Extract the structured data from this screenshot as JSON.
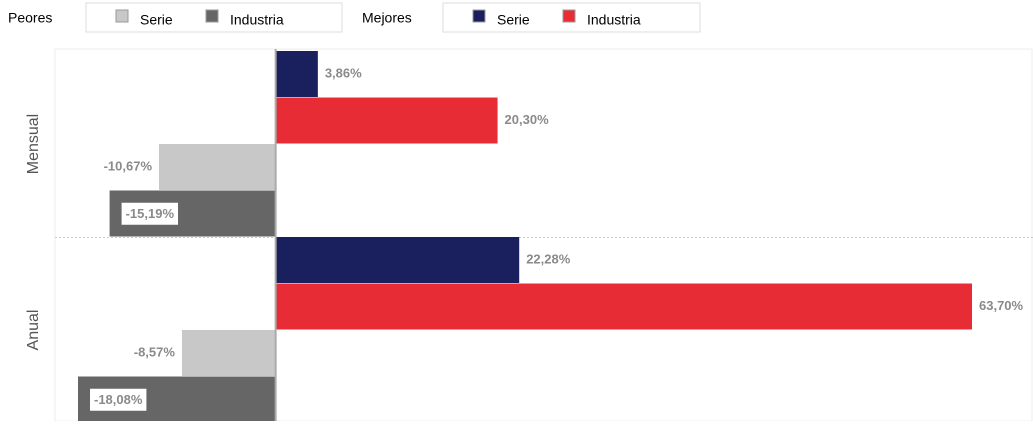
{
  "chart_data": {
    "type": "bar",
    "orientation": "horizontal",
    "categories": [
      "Mensual",
      "Anual"
    ],
    "groups": [
      {
        "name": "Peores",
        "series": [
          {
            "name": "Serie",
            "color": "#c8c8c8",
            "values": [
              -10.67,
              -8.57
            ],
            "value_labels": [
              "-10,67%",
              "-8,57%"
            ]
          },
          {
            "name": "Industria",
            "color": "#666666",
            "values": [
              -15.19,
              -18.08
            ],
            "value_labels": [
              "-15,19%",
              "-18,08%"
            ]
          }
        ]
      },
      {
        "name": "Mejores",
        "series": [
          {
            "name": "Serie",
            "color": "#1a1f5e",
            "values": [
              3.86,
              22.28
            ],
            "value_labels": [
              "3,86%",
              "22,28%"
            ]
          },
          {
            "name": "Industria",
            "color": "#e82c35",
            "values": [
              20.3,
              63.7
            ],
            "value_labels": [
              "20,30%",
              "63,70%"
            ]
          }
        ]
      }
    ]
  }
}
